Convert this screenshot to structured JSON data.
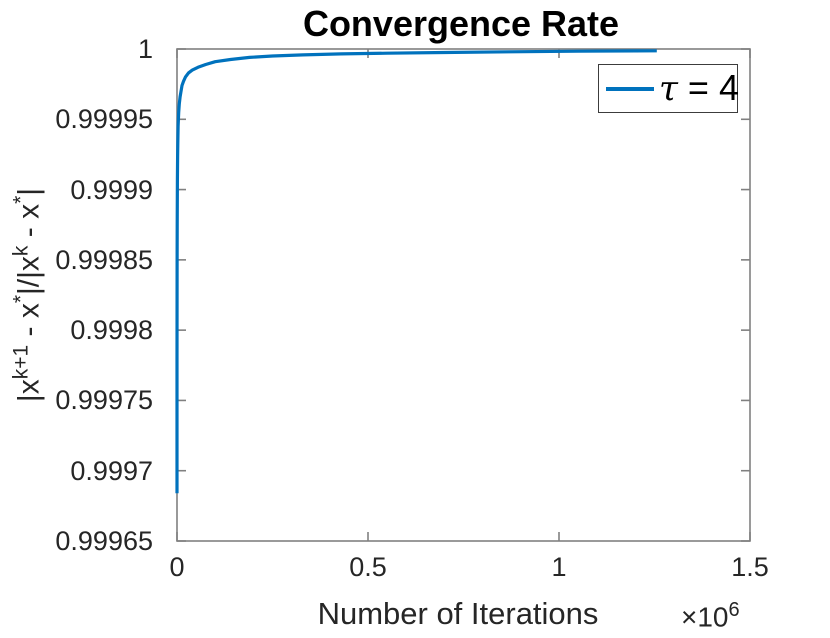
{
  "figure": {
    "background": "#ffffff"
  },
  "colors": {
    "line": "#0072BD",
    "axis_box": "#808080",
    "tick_text": "#262626",
    "title_text": "#000000",
    "legend_border": "#3c3c3c"
  },
  "chart_data": {
    "type": "line",
    "title": "Convergence Rate",
    "xlabel": "Number of Iterations",
    "x_axis_multiplier": {
      "prefix": "×10",
      "exponent": "6"
    },
    "ylabel_text": "|x^(k+1) - x^*|/|x^k - x^*|",
    "ylabel_parts": [
      {
        "t": "|x"
      },
      {
        "sup": "k+1"
      },
      {
        "t": " - x"
      },
      {
        "sup": "*"
      },
      {
        "t": "|/|x"
      },
      {
        "sup": "k"
      },
      {
        "t": " - x"
      },
      {
        "sup": "*"
      },
      {
        "t": "|"
      }
    ],
    "xlim": [
      0,
      1500000
    ],
    "ylim": [
      0.99965,
      1
    ],
    "xticks": [
      0,
      500000,
      1000000,
      1500000
    ],
    "xtick_labels": [
      "0",
      "0.5",
      "1",
      "1.5"
    ],
    "yticks": [
      0.99965,
      0.9997,
      0.99975,
      0.9998,
      0.99985,
      0.9999,
      0.99995,
      1
    ],
    "ytick_labels": [
      "0.99965",
      "0.9997",
      "0.99975",
      "0.9998",
      "0.99985",
      "0.9999",
      "0.99995",
      "1"
    ],
    "grid": false,
    "legend": {
      "position": "northeast",
      "entries": [
        {
          "symbol": "τ",
          "rest": " = 4",
          "color": "#0072BD"
        }
      ]
    },
    "series": [
      {
        "name": "τ = 4",
        "color": "#0072BD",
        "points": [
          [
            0,
            0.999684
          ],
          [
            100,
            0.999779
          ],
          [
            300,
            0.999845
          ],
          [
            500,
            0.999874
          ],
          [
            700,
            0.999891
          ],
          [
            1000,
            0.999907
          ],
          [
            1500,
            0.999923
          ],
          [
            2000,
            0.999933
          ],
          [
            3000,
            0.999945
          ],
          [
            4500,
            0.999955
          ],
          [
            6000,
            0.999961
          ],
          [
            8000,
            0.999966
          ],
          [
            10000,
            0.999969
          ],
          [
            13000,
            0.999974
          ],
          [
            17000,
            0.999977
          ],
          [
            22000,
            0.99998
          ],
          [
            30000,
            0.999983
          ],
          [
            40000,
            0.999985
          ],
          [
            55000,
            0.999987
          ],
          [
            75000,
            0.999989
          ],
          [
            100000,
            0.999991
          ],
          [
            140000,
            0.9999925
          ],
          [
            190000,
            0.999994
          ],
          [
            250000,
            0.999995
          ],
          [
            330000,
            0.9999958
          ],
          [
            430000,
            0.9999965
          ],
          [
            550000,
            0.999997
          ],
          [
            700000,
            0.9999975
          ],
          [
            870000,
            0.999998
          ],
          [
            1050000,
            0.9999984
          ],
          [
            1256000,
            0.9999987
          ]
        ]
      }
    ]
  }
}
